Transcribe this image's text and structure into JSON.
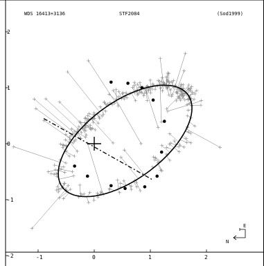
{
  "chart_data": {
    "type": "scatter",
    "title_left": "WDS 16413+3136",
    "title_center": "STF2084",
    "title_right": "(Sod1999)",
    "x_ticks": [
      "-1",
      "0",
      "1",
      "2"
    ],
    "y_ticks": [
      "2",
      "1",
      "0",
      "-1",
      "-2"
    ],
    "xlim": [
      -1.65,
      2.95
    ],
    "ylim": [
      -2.1,
      2.1
    ],
    "grid": false,
    "primary_position": [
      0,
      0
    ],
    "orbit": {
      "center": [
        0.55,
        0.05
      ],
      "semi_major": 1.39,
      "semi_minor": 0.69,
      "rotation_deg": -36.5
    },
    "line_of_nodes": {
      "from": [
        -0.9,
        0.45
      ],
      "to": [
        1.05,
        -0.65
      ]
    },
    "predicted_positions": [
      [
        0.3,
        1.1
      ],
      [
        0.6,
        1.08
      ],
      [
        0.85,
        1.0
      ],
      [
        1.05,
        0.78
      ],
      [
        1.25,
        0.4
      ],
      [
        1.2,
        -0.15
      ],
      [
        1.12,
        -0.58
      ],
      [
        0.9,
        -0.77
      ],
      [
        0.55,
        -0.8
      ],
      [
        0.3,
        -0.75
      ],
      [
        -0.12,
        -0.58
      ],
      [
        -0.35,
        -0.4
      ]
    ],
    "observation_count": 320,
    "compass": {
      "east_label": "E",
      "north_label": "N"
    }
  }
}
